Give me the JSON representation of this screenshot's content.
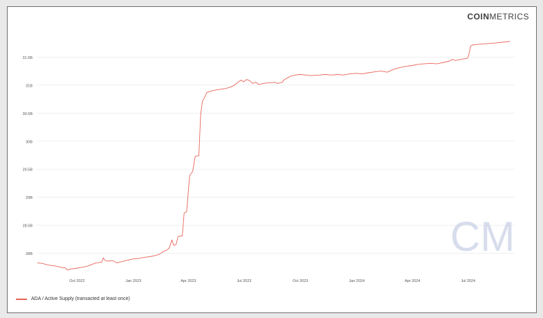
{
  "brand": {
    "prefix": "COIN",
    "suffix": "METRICS",
    "watermark": "CM"
  },
  "chart_data": {
    "type": "line",
    "title": "",
    "xlabel": "",
    "ylabel": "",
    "y_ticks": [
      {
        "value": 28.0,
        "label": "28B"
      },
      {
        "value": 28.5,
        "label": "28.5B"
      },
      {
        "value": 29.0,
        "label": "29B"
      },
      {
        "value": 29.5,
        "label": "29.5B"
      },
      {
        "value": 30.0,
        "label": "30B"
      },
      {
        "value": 30.5,
        "label": "30.5B"
      },
      {
        "value": 31.0,
        "label": "31B"
      },
      {
        "value": 31.5,
        "label": "31.5B"
      }
    ],
    "x_ticks": [
      {
        "date": "2022-10-01",
        "label": "Oct 2022"
      },
      {
        "date": "2023-01-01",
        "label": "Jan 2023"
      },
      {
        "date": "2023-04-01",
        "label": "Apr 2023"
      },
      {
        "date": "2023-07-01",
        "label": "Jul 2023"
      },
      {
        "date": "2023-10-01",
        "label": "Oct 2023"
      },
      {
        "date": "2024-01-01",
        "label": "Jan 2024"
      },
      {
        "date": "2024-04-01",
        "label": "Apr 2024"
      },
      {
        "date": "2024-07-01",
        "label": "Jul 2024"
      }
    ],
    "xlim": [
      "2022-07-27",
      "2024-09-15"
    ],
    "ylim": [
      27.6,
      31.9
    ],
    "grid": true,
    "legend_position": "bottom-left",
    "series": [
      {
        "name": "ADA / Active Supply (transacted at least once)",
        "color": "#e8645a",
        "points": [
          [
            "2022-07-28",
            27.83
          ],
          [
            "2022-08-05",
            27.82
          ],
          [
            "2022-08-15",
            27.79
          ],
          [
            "2022-08-28",
            27.77
          ],
          [
            "2022-09-05",
            27.75
          ],
          [
            "2022-09-12",
            27.74
          ],
          [
            "2022-09-15",
            27.7
          ],
          [
            "2022-09-20",
            27.72
          ],
          [
            "2022-09-28",
            27.73
          ],
          [
            "2022-10-08",
            27.75
          ],
          [
            "2022-10-18",
            27.77
          ],
          [
            "2022-10-25",
            27.8
          ],
          [
            "2022-11-01",
            27.83
          ],
          [
            "2022-11-10",
            27.84
          ],
          [
            "2022-11-13",
            27.92
          ],
          [
            "2022-11-15",
            27.88
          ],
          [
            "2022-11-20",
            27.86
          ],
          [
            "2022-11-28",
            27.87
          ],
          [
            "2022-12-05",
            27.83
          ],
          [
            "2022-12-12",
            27.85
          ],
          [
            "2022-12-20",
            27.87
          ],
          [
            "2023-01-01",
            27.9
          ],
          [
            "2023-01-10",
            27.91
          ],
          [
            "2023-01-20",
            27.93
          ],
          [
            "2023-01-28",
            27.94
          ],
          [
            "2023-02-05",
            27.96
          ],
          [
            "2023-02-12",
            27.98
          ],
          [
            "2023-02-20",
            28.04
          ],
          [
            "2023-02-25",
            28.06
          ],
          [
            "2023-03-01",
            28.1
          ],
          [
            "2023-03-05",
            28.24
          ],
          [
            "2023-03-08",
            28.14
          ],
          [
            "2023-03-12",
            28.16
          ],
          [
            "2023-03-15",
            28.3
          ],
          [
            "2023-03-22",
            28.31
          ],
          [
            "2023-03-25",
            28.72
          ],
          [
            "2023-03-29",
            28.74
          ],
          [
            "2023-04-03",
            29.39
          ],
          [
            "2023-04-08",
            29.46
          ],
          [
            "2023-04-12",
            29.73
          ],
          [
            "2023-04-18",
            29.74
          ],
          [
            "2023-04-21",
            30.48
          ],
          [
            "2023-04-24",
            30.72
          ],
          [
            "2023-04-27",
            30.77
          ],
          [
            "2023-05-01",
            30.87
          ],
          [
            "2023-05-10",
            30.9
          ],
          [
            "2023-05-20",
            30.92
          ],
          [
            "2023-06-01",
            30.94
          ],
          [
            "2023-06-10",
            30.97
          ],
          [
            "2023-06-15",
            31.0
          ],
          [
            "2023-06-22",
            31.06
          ],
          [
            "2023-06-26",
            31.09
          ],
          [
            "2023-06-30",
            31.06
          ],
          [
            "2023-07-05",
            31.1
          ],
          [
            "2023-07-10",
            31.08
          ],
          [
            "2023-07-15",
            31.03
          ],
          [
            "2023-07-20",
            31.05
          ],
          [
            "2023-07-25",
            31.01
          ],
          [
            "2023-08-01",
            31.03
          ],
          [
            "2023-08-10",
            31.04
          ],
          [
            "2023-08-20",
            31.05
          ],
          [
            "2023-08-25",
            31.03
          ],
          [
            "2023-09-01",
            31.05
          ],
          [
            "2023-09-05",
            31.1
          ],
          [
            "2023-09-10",
            31.13
          ],
          [
            "2023-09-15",
            31.16
          ],
          [
            "2023-09-22",
            31.18
          ],
          [
            "2023-10-01",
            31.19
          ],
          [
            "2023-10-10",
            31.18
          ],
          [
            "2023-10-20",
            31.17
          ],
          [
            "2023-11-01",
            31.18
          ],
          [
            "2023-11-10",
            31.19
          ],
          [
            "2023-11-20",
            31.18
          ],
          [
            "2023-12-01",
            31.19
          ],
          [
            "2023-12-10",
            31.18
          ],
          [
            "2023-12-20",
            31.2
          ],
          [
            "2024-01-01",
            31.21
          ],
          [
            "2024-01-10",
            31.2
          ],
          [
            "2024-01-20",
            31.22
          ],
          [
            "2024-02-01",
            31.24
          ],
          [
            "2024-02-10",
            31.25
          ],
          [
            "2024-02-20",
            31.23
          ],
          [
            "2024-03-01",
            31.28
          ],
          [
            "2024-03-10",
            31.31
          ],
          [
            "2024-03-20",
            31.33
          ],
          [
            "2024-04-01",
            31.35
          ],
          [
            "2024-04-10",
            31.37
          ],
          [
            "2024-04-20",
            31.38
          ],
          [
            "2024-05-01",
            31.39
          ],
          [
            "2024-05-10",
            31.38
          ],
          [
            "2024-05-20",
            31.4
          ],
          [
            "2024-06-01",
            31.43
          ],
          [
            "2024-06-05",
            31.46
          ],
          [
            "2024-06-10",
            31.44
          ],
          [
            "2024-06-15",
            31.45
          ],
          [
            "2024-06-20",
            31.46
          ],
          [
            "2024-06-25",
            31.47
          ],
          [
            "2024-06-30",
            31.48
          ],
          [
            "2024-07-02",
            31.53
          ],
          [
            "2024-07-05",
            31.7
          ],
          [
            "2024-07-10",
            31.72
          ],
          [
            "2024-07-20",
            31.73
          ],
          [
            "2024-08-01",
            31.74
          ],
          [
            "2024-08-15",
            31.75
          ],
          [
            "2024-08-30",
            31.77
          ],
          [
            "2024-09-08",
            31.78
          ]
        ]
      }
    ]
  }
}
